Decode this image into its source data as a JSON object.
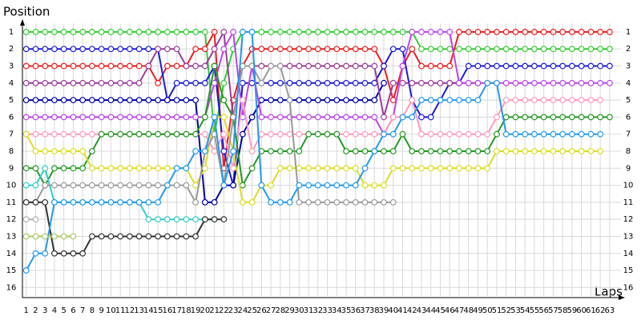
{
  "chart_data": {
    "type": "line",
    "y_label": "Position",
    "x_label": "Laps",
    "x": [
      1,
      2,
      3,
      4,
      5,
      6,
      7,
      8,
      9,
      10,
      11,
      12,
      13,
      14,
      15,
      16,
      17,
      18,
      19,
      20,
      21,
      22,
      23,
      24,
      25,
      26,
      27,
      28,
      29,
      30,
      31,
      32,
      33,
      34,
      35,
      36,
      37,
      38,
      39,
      40,
      41,
      42,
      43,
      44,
      45,
      46,
      47,
      48,
      49,
      50,
      51,
      52,
      53,
      54,
      55,
      56,
      57,
      58,
      59,
      60,
      61,
      62,
      63
    ],
    "xlim": [
      0.6,
      64.2
    ],
    "xticks": [
      1,
      2,
      3,
      4,
      5,
      6,
      7,
      8,
      9,
      10,
      11,
      12,
      13,
      14,
      15,
      16,
      17,
      18,
      19,
      20,
      21,
      22,
      23,
      24,
      25,
      26,
      27,
      28,
      29,
      30,
      31,
      32,
      33,
      34,
      35,
      36,
      37,
      38,
      39,
      40,
      41,
      42,
      43,
      44,
      45,
      46,
      47,
      48,
      49,
      50,
      51,
      52,
      53,
      54,
      55,
      56,
      57,
      58,
      59,
      60,
      61,
      62,
      63
    ],
    "ylim": [
      16.5,
      0.5
    ],
    "yticks": [
      1,
      2,
      3,
      4,
      5,
      6,
      7,
      8,
      9,
      10,
      11,
      12,
      13,
      14,
      15,
      16
    ],
    "grid": true,
    "series": [
      {
        "color": "#33cc33",
        "values": [
          1,
          1,
          1,
          1,
          1,
          1,
          1,
          1,
          1,
          1,
          1,
          1,
          1,
          1,
          1,
          1,
          1,
          1,
          1,
          1,
          7,
          4,
          2,
          1,
          1,
          1,
          1,
          1,
          1,
          1,
          1,
          1,
          1,
          1,
          1,
          1,
          1,
          1,
          1,
          1,
          1,
          1,
          2,
          2,
          2,
          2,
          2,
          2,
          2,
          2,
          2,
          2,
          2,
          2,
          2,
          2,
          2,
          2,
          2,
          2,
          2,
          2,
          2
        ]
      },
      {
        "color": "#ee1c1c",
        "values": [
          3,
          3,
          3,
          3,
          3,
          3,
          3,
          3,
          3,
          3,
          3,
          3,
          3,
          3,
          4,
          3,
          3,
          3,
          2,
          2,
          1,
          9,
          5,
          3,
          2,
          2,
          2,
          2,
          2,
          2,
          2,
          2,
          2,
          2,
          2,
          2,
          2,
          2,
          3,
          5,
          3,
          2,
          3,
          3,
          3,
          3,
          1,
          1,
          1,
          1,
          1,
          1,
          1,
          1,
          1,
          1,
          1,
          1,
          1,
          1,
          1,
          1,
          1
        ]
      },
      {
        "color": "#1a1adf",
        "values": [
          2,
          2,
          2,
          2,
          2,
          2,
          2,
          2,
          2,
          2,
          2,
          2,
          2,
          2,
          2,
          5,
          4,
          4,
          4,
          4,
          3,
          8,
          10,
          4,
          4,
          4,
          4,
          4,
          4,
          4,
          4,
          4,
          4,
          4,
          4,
          4,
          4,
          4,
          3,
          2,
          2,
          5,
          6,
          6,
          5,
          4,
          4,
          3,
          3,
          3,
          3,
          3,
          3,
          3,
          3,
          3,
          3,
          3,
          3,
          3,
          3,
          3,
          3
        ]
      },
      {
        "color": "#0000a8",
        "values": [
          5,
          5,
          5,
          5,
          5,
          5,
          5,
          5,
          5,
          5,
          5,
          5,
          5,
          5,
          5,
          5,
          5,
          5,
          5,
          11,
          11,
          10,
          10,
          7,
          6,
          5,
          5,
          5,
          5,
          5,
          5,
          5,
          5,
          5,
          5,
          5,
          5,
          5,
          4,
          null,
          null,
          null,
          null,
          null,
          null,
          null,
          null,
          null,
          null,
          null,
          null,
          null,
          null,
          null,
          null,
          null,
          null,
          null,
          null,
          null,
          null,
          null,
          null
        ]
      },
      {
        "color": "#9b3b9b",
        "values": [
          4,
          4,
          4,
          4,
          4,
          4,
          4,
          4,
          4,
          4,
          4,
          4,
          4,
          3,
          2,
          2,
          2,
          3,
          3,
          3,
          2,
          1,
          6,
          3,
          3,
          3,
          3,
          3,
          3,
          3,
          3,
          3,
          3,
          3,
          3,
          3,
          3,
          3,
          6,
          4,
          4,
          4,
          4,
          4,
          4,
          4,
          4,
          4,
          4,
          null,
          null,
          null,
          null,
          null,
          null,
          null,
          null,
          null,
          null,
          null,
          null,
          null,
          null
        ]
      },
      {
        "color": "#bb44ee",
        "values": [
          6,
          6,
          6,
          6,
          6,
          6,
          6,
          6,
          6,
          6,
          6,
          6,
          6,
          6,
          6,
          6,
          6,
          6,
          6,
          6,
          4,
          2,
          1,
          6,
          3,
          6,
          6,
          6,
          6,
          6,
          6,
          6,
          6,
          6,
          6,
          6,
          6,
          6,
          7,
          6,
          3,
          1,
          1,
          1,
          1,
          1,
          4,
          4,
          4,
          4,
          4,
          4,
          4,
          4,
          4,
          4,
          4,
          4,
          4,
          4,
          4,
          4,
          4
        ]
      },
      {
        "color": "#ff99bb",
        "values": [
          7,
          7,
          7,
          7,
          7,
          7,
          7,
          7,
          7,
          7,
          7,
          7,
          7,
          7,
          7,
          7,
          7,
          7,
          7,
          7,
          8,
          7,
          9,
          5,
          8,
          7,
          7,
          7,
          7,
          7,
          7,
          7,
          7,
          7,
          7,
          7,
          7,
          7,
          7,
          6,
          6,
          5,
          7,
          7,
          7,
          7,
          7,
          7,
          7,
          7,
          6,
          5,
          5,
          5,
          5,
          5,
          5,
          5,
          5,
          5,
          5,
          5,
          null
        ]
      },
      {
        "color": "#229922",
        "values": [
          9,
          9,
          10,
          9,
          9,
          9,
          9,
          8,
          7,
          7,
          7,
          7,
          7,
          7,
          7,
          7,
          7,
          7,
          7,
          6,
          3,
          5,
          6,
          10,
          9,
          8,
          8,
          8,
          8,
          8,
          7,
          7,
          7,
          7,
          8,
          8,
          8,
          8,
          8,
          8,
          7,
          8,
          8,
          8,
          8,
          8,
          8,
          8,
          8,
          8,
          7,
          6,
          6,
          6,
          6,
          6,
          6,
          6,
          6,
          6,
          6,
          6,
          6
        ]
      },
      {
        "color": "#dddd22",
        "values": [
          7,
          8,
          8,
          8,
          8,
          8,
          8,
          9,
          9,
          9,
          9,
          9,
          9,
          9,
          9,
          9,
          9,
          9,
          10,
          9,
          6,
          6,
          8,
          11,
          11,
          10,
          10,
          9,
          9,
          9,
          9,
          9,
          9,
          9,
          9,
          9,
          10,
          10,
          10,
          9,
          9,
          9,
          9,
          9,
          9,
          9,
          9,
          9,
          9,
          9,
          8,
          8,
          8,
          8,
          8,
          8,
          8,
          8,
          8,
          8,
          8,
          8,
          null
        ]
      },
      {
        "color": "#33cccc",
        "values": [
          10,
          10,
          9,
          11,
          11,
          11,
          11,
          11,
          11,
          11,
          11,
          11,
          11,
          12,
          12,
          12,
          12,
          12,
          12,
          12,
          12,
          null,
          null,
          null,
          null,
          null,
          null,
          null,
          null,
          null,
          null,
          null,
          null,
          null,
          null,
          null,
          null,
          null,
          null,
          null,
          null,
          null,
          null,
          null,
          null,
          null,
          null,
          null,
          null,
          null,
          null,
          null,
          null,
          null,
          null,
          null,
          null,
          null,
          null,
          null,
          null,
          null,
          null
        ]
      },
      {
        "color": "#9a9a9a",
        "values": [
          11,
          11,
          10,
          10,
          10,
          10,
          10,
          10,
          10,
          10,
          10,
          10,
          10,
          10,
          10,
          10,
          10,
          10,
          11,
          8,
          7,
          10,
          6,
          3,
          3,
          4,
          3,
          3,
          5,
          11,
          11,
          11,
          11,
          11,
          11,
          11,
          11,
          11,
          11,
          11,
          null,
          null,
          null,
          null,
          null,
          null,
          null,
          null,
          null,
          null,
          null,
          null,
          null,
          null,
          null,
          null,
          null,
          null,
          null,
          null,
          null,
          null,
          null
        ]
      },
      {
        "color": "#333333",
        "values": [
          11,
          11,
          11,
          14,
          14,
          14,
          14,
          13,
          13,
          13,
          13,
          13,
          13,
          13,
          13,
          13,
          13,
          13,
          13,
          12,
          12,
          12,
          null,
          null,
          null,
          null,
          null,
          null,
          null,
          null,
          null,
          null,
          null,
          null,
          null,
          null,
          null,
          null,
          null,
          null,
          null,
          null,
          null,
          null,
          null,
          null,
          null,
          null,
          null,
          null,
          null,
          null,
          null,
          null,
          null,
          null,
          null,
          null,
          null,
          null,
          null,
          null,
          null
        ]
      },
      {
        "color": "#2299ee",
        "values": [
          15,
          14,
          14,
          11,
          11,
          11,
          11,
          11,
          11,
          11,
          11,
          11,
          11,
          11,
          11,
          10,
          9,
          9,
          8,
          8,
          6,
          10,
          8,
          1,
          1,
          10,
          11,
          11,
          11,
          10,
          10,
          10,
          10,
          10,
          10,
          10,
          9,
          8,
          7,
          7,
          6,
          6,
          5,
          5,
          5,
          5,
          5,
          5,
          5,
          4,
          4,
          7,
          7,
          7,
          7,
          7,
          7,
          7,
          7,
          7,
          7,
          7,
          null
        ]
      },
      {
        "color": "#aacc66",
        "values": [
          13,
          13,
          13,
          13,
          13,
          13,
          null,
          null,
          null,
          null,
          null,
          null,
          null,
          null,
          null,
          null,
          null,
          null,
          null,
          null,
          null,
          null,
          null,
          null,
          null,
          null,
          null,
          null,
          null,
          null,
          null,
          null,
          null,
          null,
          null,
          null,
          null,
          null,
          null,
          null,
          null,
          null,
          null,
          null,
          null,
          null,
          null,
          null,
          null,
          null,
          null,
          null,
          null,
          null,
          null,
          null,
          null,
          null,
          null,
          null,
          null,
          null,
          null
        ]
      },
      {
        "color": "#b0b0b0",
        "values": [
          12,
          12,
          null,
          null,
          null,
          null,
          null,
          null,
          null,
          null,
          null,
          null,
          null,
          null,
          null,
          null,
          null,
          null,
          null,
          null,
          null,
          null,
          null,
          null,
          null,
          null,
          null,
          null,
          null,
          null,
          null,
          null,
          null,
          null,
          null,
          null,
          null,
          null,
          null,
          null,
          null,
          null,
          null,
          null,
          null,
          null,
          null,
          null,
          null,
          null,
          null,
          null,
          null,
          null,
          null,
          null,
          null,
          null,
          null,
          null,
          null,
          null,
          null
        ]
      }
    ]
  }
}
